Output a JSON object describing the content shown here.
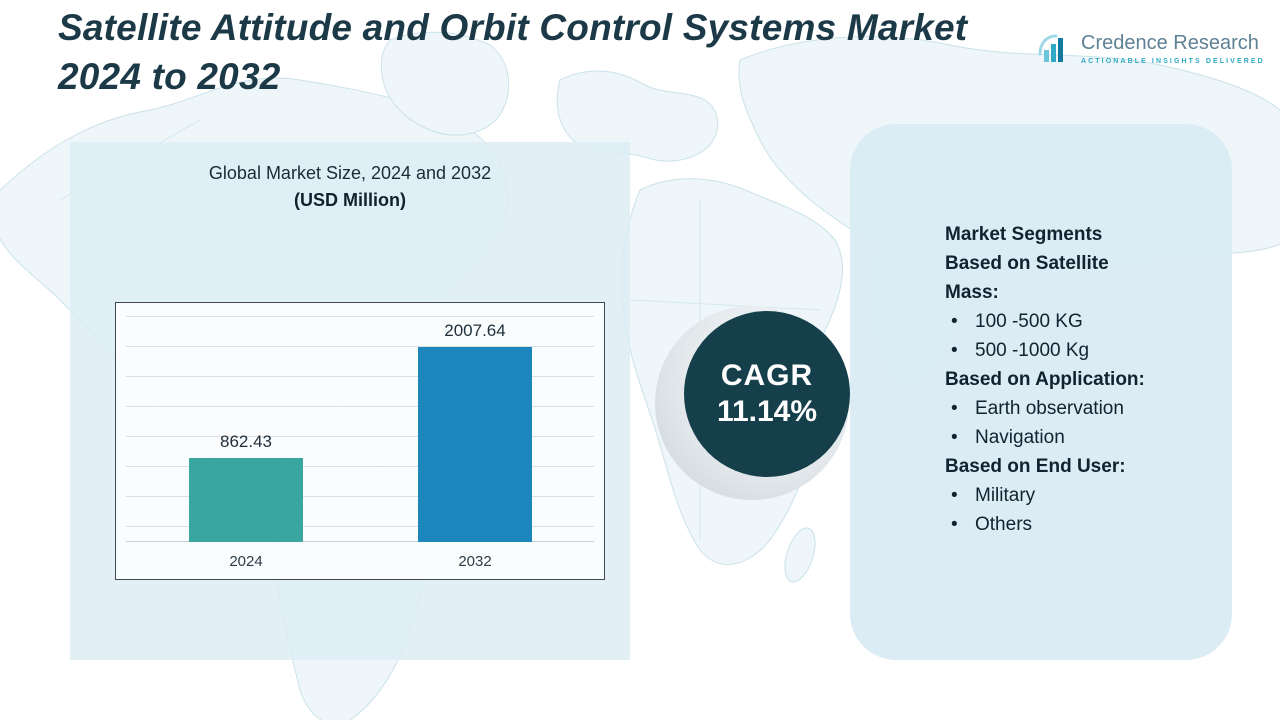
{
  "page": {
    "title": "Satellite Attitude and Orbit Control Systems Market 2024 to 2032"
  },
  "logo": {
    "name": "Credence Research",
    "tagline": "Actionable Insights Delivered"
  },
  "chart_panel": {
    "heading": "Global Market Size, 2024 and 2032",
    "subheading": "(USD Million)"
  },
  "chart_data": {
    "type": "bar",
    "title": "Global Market Size, 2024 and 2032 (USD Million)",
    "categories": [
      "2024",
      "2032"
    ],
    "values": [
      862.43,
      2007.64
    ],
    "value_labels": [
      "862.43",
      "2007.64"
    ],
    "bar_colors": [
      "#3aa6a0",
      "#1d87bd"
    ],
    "xlabel": "",
    "ylabel": "",
    "ylim": [
      0,
      2100
    ],
    "grid": true,
    "legend": false
  },
  "cagr": {
    "label": "CAGR",
    "value": "11.14%"
  },
  "segments": {
    "intro": "Market Segments",
    "sections": [
      {
        "heading": "Based on Satellite Mass:",
        "items": [
          "100 -500 KG",
          "500 -1000 Kg"
        ]
      },
      {
        "heading": "Based on Application:",
        "items": [
          "Earth observation",
          "Navigation"
        ]
      },
      {
        "heading": "Based on End User:",
        "items": [
          "Military",
          "Others"
        ]
      }
    ]
  },
  "colors": {
    "cagr_circle": "#15404b",
    "panel_blue": "#ddeef5",
    "accent_teal": "#2fa9c4"
  }
}
